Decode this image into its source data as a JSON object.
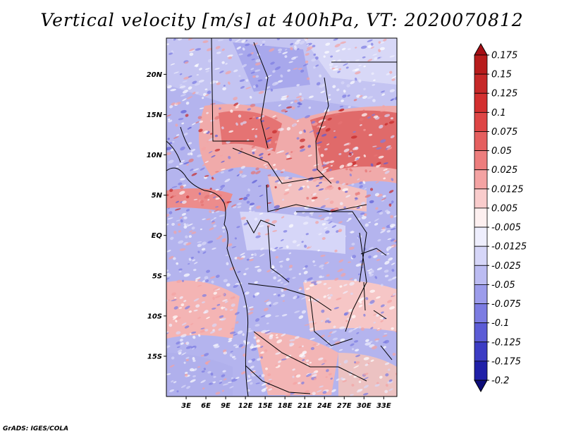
{
  "title": "Vertical velocity [m/s] at 400hPa, VT: 2020070812",
  "credit": "GrADS: IGES/COLA",
  "map": {
    "region": "Central Africa",
    "lon_range_deg": [
      0,
      35
    ],
    "lat_range_deg": [
      -20,
      24.5
    ],
    "lat_ticks": [
      "20N",
      "15N",
      "10N",
      "5N",
      "EQ",
      "5S",
      "10S",
      "15S"
    ],
    "lat_tick_values": [
      20,
      15,
      10,
      5,
      0,
      -5,
      -10,
      -15
    ],
    "lon_ticks": [
      "3E",
      "6E",
      "9E",
      "12E",
      "15E",
      "18E",
      "21E",
      "24E",
      "27E",
      "30E",
      "33E"
    ],
    "lon_tick_values": [
      3,
      6,
      9,
      12,
      15,
      18,
      21,
      24,
      27,
      30,
      33
    ]
  },
  "colorbar": {
    "labels": [
      "0.175",
      "0.15",
      "0.125",
      "0.1",
      "0.075",
      "0.05",
      "0.025",
      "0.0125",
      "0.005",
      "-0.005",
      "-0.0125",
      "-0.025",
      "-0.05",
      "-0.075",
      "-0.1",
      "-0.125",
      "-0.175",
      "-0.2"
    ],
    "colors": [
      "#a50f15",
      "#b71c1c",
      "#c62828",
      "#d32f2f",
      "#de4545",
      "#e55f5f",
      "#ed7d7d",
      "#f4a3a3",
      "#f9cccc",
      "#fdf0f0",
      "#eeeefd",
      "#d6d6f8",
      "#bcbcf2",
      "#9c9ceb",
      "#7c7ce2",
      "#5c5cd6",
      "#3c3cc4",
      "#2020a8",
      "#0d0d7a"
    ]
  }
}
